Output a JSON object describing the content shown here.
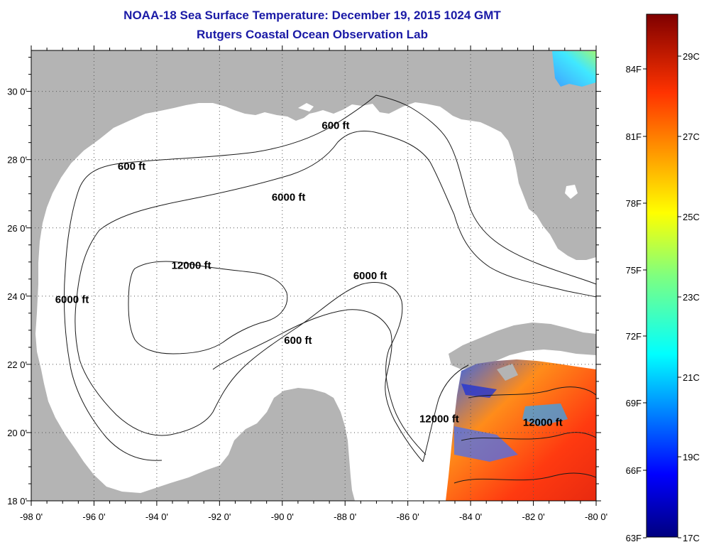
{
  "title": "NOAA-18 Sea Surface Temperature:  December 19, 2015 1024 GMT",
  "subtitle": "Rutgers Coastal Ocean Observation Lab",
  "colors": {
    "land": "#b4b4b4",
    "title": "#1a1aa6",
    "contour": "#1a1a1a"
  },
  "map": {
    "lon_range": [
      -98,
      -80
    ],
    "lat_range": [
      18,
      31.2
    ],
    "lon_ticks": [
      "-98 0'",
      "-96 0'",
      "-94 0'",
      "-92 0'",
      "-90 0'",
      "-88 0'",
      "-86 0'",
      "-84 0'",
      "-82 0'",
      "-80 0'"
    ],
    "lat_ticks": [
      "18 0'",
      "20 0'",
      "22 0'",
      "24 0'",
      "26 0'",
      "28 0'",
      "30 0'"
    ],
    "grid": "dotted",
    "contour_labels": [
      {
        "text": "600 ft",
        "lon": -94.8,
        "lat": 27.7
      },
      {
        "text": "600 ft",
        "lon": -88.3,
        "lat": 28.9
      },
      {
        "text": "6000 ft",
        "lon": -89.8,
        "lat": 26.8
      },
      {
        "text": "12000 ft",
        "lon": -92.9,
        "lat": 24.8
      },
      {
        "text": "6000 ft",
        "lon": -96.7,
        "lat": 23.8
      },
      {
        "text": "6000 ft",
        "lon": -87.2,
        "lat": 24.5
      },
      {
        "text": "600 ft",
        "lon": -89.5,
        "lat": 22.6
      },
      {
        "text": "12000 ft",
        "lon": -85.0,
        "lat": 20.3
      },
      {
        "text": "12000 ft",
        "lon": -81.7,
        "lat": 20.2
      }
    ]
  },
  "colorbar": {
    "celsius_labels": [
      "17C",
      "19C",
      "21C",
      "23C",
      "25C",
      "27C",
      "29C"
    ],
    "fahrenheit_labels": [
      "63F",
      "66F",
      "69F",
      "72F",
      "75F",
      "78F",
      "81F",
      "84F"
    ]
  }
}
